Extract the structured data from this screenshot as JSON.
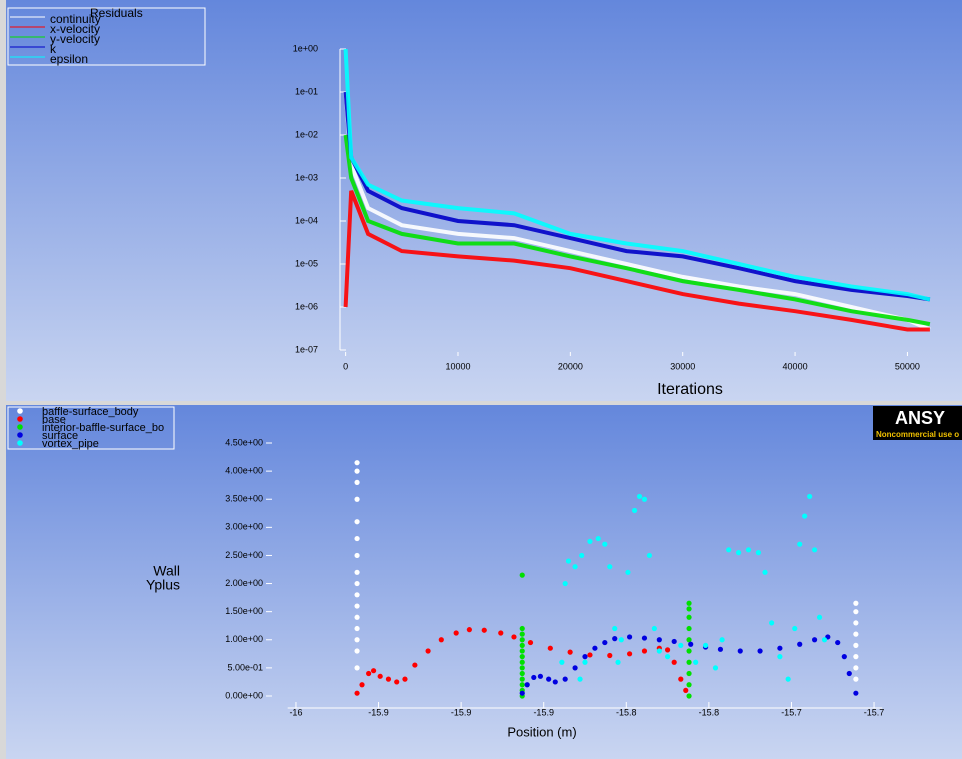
{
  "chart_data": [
    {
      "type": "line",
      "title": "Residuals",
      "xlabel": "Iterations",
      "log_y": true,
      "x": [
        0,
        500,
        2000,
        5000,
        10000,
        15000,
        20000,
        25000,
        30000,
        35000,
        40000,
        45000,
        50000,
        52000
      ],
      "xlim": [
        -500,
        54500
      ],
      "xticks": [
        0,
        10000,
        20000,
        30000,
        40000,
        50000
      ],
      "ylim": [
        1e-07,
        1
      ],
      "yticks": [
        {
          "value": 1,
          "label": "1e+00"
        },
        {
          "value": 0.1,
          "label": "1e-01"
        },
        {
          "value": 0.01,
          "label": "1e-02"
        },
        {
          "value": 0.001,
          "label": "1e-03"
        },
        {
          "value": 0.0001,
          "label": "1e-04"
        },
        {
          "value": 1e-05,
          "label": "1e-05"
        },
        {
          "value": 1e-06,
          "label": "1e-06"
        },
        {
          "value": 1e-07,
          "label": "1e-07"
        }
      ],
      "legend": "top-left",
      "series": [
        {
          "name": "continuity",
          "color": "#ffffff",
          "values": [
            0.1,
            0.002,
            0.0002,
            8e-05,
            5e-05,
            4e-05,
            2e-05,
            1e-05,
            5e-06,
            3e-06,
            2e-06,
            1e-06,
            5e-07,
            3e-07
          ]
        },
        {
          "name": "x-velocity",
          "color": "#ff0000",
          "values": [
            1e-06,
            0.0005,
            5e-05,
            2e-05,
            1.5e-05,
            1.2e-05,
            8e-06,
            4e-06,
            2e-06,
            1.2e-06,
            8e-07,
            5e-07,
            3e-07,
            3e-07
          ]
        },
        {
          "name": "y-velocity",
          "color": "#00e000",
          "values": [
            0.01,
            0.001,
            0.0001,
            5e-05,
            3e-05,
            3e-05,
            1.5e-05,
            8e-06,
            4e-06,
            2.5e-06,
            1.5e-06,
            8e-07,
            5e-07,
            4e-07
          ]
        },
        {
          "name": "k",
          "color": "#0000c8",
          "values": [
            0.1,
            0.003,
            0.0005,
            0.0002,
            0.0001,
            8e-05,
            4e-05,
            2e-05,
            1.5e-05,
            8e-06,
            4e-06,
            2.5e-06,
            1.8e-06,
            1.5e-06
          ]
        },
        {
          "name": "epsilon",
          "color": "#00ffff",
          "values": [
            1,
            0.003,
            0.0007,
            0.0003,
            0.0002,
            0.00015,
            5e-05,
            3e-05,
            2e-05,
            1e-05,
            5e-06,
            3e-06,
            2e-06,
            1.5e-06
          ]
        }
      ]
    },
    {
      "type": "scatter",
      "xlabel": "Position (m)",
      "ylabel": [
        "Wall",
        "Yplus"
      ],
      "xlim": [
        -16.005,
        -15.645
      ],
      "xticks": [
        -16,
        {
          "value": -15.95,
          "label": "-15.9"
        },
        -15.9,
        {
          "value": -15.85,
          "label": "-15.9"
        },
        -15.8,
        {
          "value": -15.75,
          "label": "-15.8"
        },
        -15.7,
        {
          "value": -15.65,
          "label": "-15.7"
        }
      ],
      "ylim": [
        -0.05,
        4.55
      ],
      "yticks": [
        {
          "value": 0,
          "label": "0.00e+00"
        },
        {
          "value": 0.5,
          "label": "5.00e-01"
        },
        {
          "value": 1,
          "label": "1.00e+00"
        },
        {
          "value": 1.5,
          "label": "1.50e+00"
        },
        {
          "value": 2,
          "label": "2.00e+00"
        },
        {
          "value": 2.5,
          "label": "2.50e+00"
        },
        {
          "value": 3,
          "label": "3.00e+00"
        },
        {
          "value": 3.5,
          "label": "3.50e+00"
        },
        {
          "value": 4,
          "label": "4.00e+00"
        },
        {
          "value": 4.5,
          "label": "4.50e+00"
        }
      ],
      "legend": "top-left",
      "logo": "ANSY",
      "logo_note": "Noncommercial use o",
      "series": [
        {
          "name": "baffle-surface_body",
          "color": "#ffffff",
          "x": [
            -15.963,
            -15.963,
            -15.963,
            -15.963,
            -15.963,
            -15.963,
            -15.963,
            -15.963,
            -15.963,
            -15.963,
            -15.963,
            -15.963,
            -15.963,
            -15.963,
            -15.963,
            -15.963,
            -15.661,
            -15.661,
            -15.661,
            -15.661,
            -15.661,
            -15.661,
            -15.661,
            -15.661,
            -15.661
          ],
          "values": [
            0.5,
            0.8,
            1.0,
            1.2,
            1.4,
            1.6,
            1.8,
            2.0,
            2.2,
            2.5,
            2.8,
            3.1,
            3.5,
            3.8,
            4.0,
            4.15,
            0.05,
            0.3,
            0.5,
            0.7,
            0.9,
            1.1,
            1.3,
            1.5,
            1.65
          ]
        },
        {
          "name": "base",
          "color": "#ff0000",
          "x": [
            -15.963,
            -15.96,
            -15.956,
            -15.953,
            -15.949,
            -15.944,
            -15.939,
            -15.934,
            -15.928,
            -15.92,
            -15.912,
            -15.903,
            -15.895,
            -15.886,
            -15.876,
            -15.868,
            -15.858,
            -15.846,
            -15.834,
            -15.822,
            -15.81,
            -15.798,
            -15.789,
            -15.78,
            -15.775,
            -15.771,
            -15.767,
            -15.764
          ],
          "values": [
            0.05,
            0.2,
            0.4,
            0.45,
            0.35,
            0.3,
            0.25,
            0.3,
            0.55,
            0.8,
            1.0,
            1.12,
            1.18,
            1.17,
            1.12,
            1.05,
            0.95,
            0.85,
            0.78,
            0.73,
            0.72,
            0.75,
            0.8,
            0.85,
            0.82,
            0.6,
            0.3,
            0.1
          ]
        },
        {
          "name": "interior-baffle-surface_bo",
          "color": "#00e000",
          "x": [
            -15.863,
            -15.863,
            -15.863,
            -15.863,
            -15.863,
            -15.863,
            -15.863,
            -15.863,
            -15.863,
            -15.863,
            -15.863,
            -15.863,
            -15.863,
            -15.863,
            -15.762,
            -15.762,
            -15.762,
            -15.762,
            -15.762,
            -15.762,
            -15.762,
            -15.762,
            -15.762,
            -15.762
          ],
          "values": [
            0,
            0.1,
            0.2,
            0.3,
            0.4,
            0.5,
            0.6,
            0.7,
            0.8,
            0.9,
            1.0,
            1.1,
            1.2,
            2.15,
            0,
            0.2,
            0.4,
            0.6,
            0.8,
            1.0,
            1.2,
            1.4,
            1.55,
            1.65
          ]
        },
        {
          "name": "surface",
          "color": "#0000e0",
          "x": [
            -15.863,
            -15.86,
            -15.856,
            -15.852,
            -15.847,
            -15.843,
            -15.837,
            -15.831,
            -15.825,
            -15.819,
            -15.813,
            -15.807,
            -15.798,
            -15.789,
            -15.78,
            -15.771,
            -15.761,
            -15.752,
            -15.743,
            -15.731,
            -15.719,
            -15.707,
            -15.695,
            -15.686,
            -15.678,
            -15.672,
            -15.668,
            -15.665,
            -15.661
          ],
          "values": [
            0.05,
            0.2,
            0.33,
            0.35,
            0.3,
            0.25,
            0.3,
            0.5,
            0.7,
            0.85,
            0.95,
            1.02,
            1.05,
            1.03,
            1.0,
            0.97,
            0.92,
            0.87,
            0.83,
            0.8,
            0.8,
            0.85,
            0.92,
            1.0,
            1.05,
            0.95,
            0.7,
            0.4,
            0.05
          ]
        },
        {
          "name": "vortex_pipe",
          "color": "#00ffff",
          "x": [
            -15.839,
            -15.837,
            -15.835,
            -15.831,
            -15.828,
            -15.827,
            -15.825,
            -15.822,
            -15.817,
            -15.813,
            -15.81,
            -15.807,
            -15.805,
            -15.803,
            -15.799,
            -15.795,
            -15.792,
            -15.789,
            -15.786,
            -15.783,
            -15.78,
            -15.775,
            -15.767,
            -15.758,
            -15.752,
            -15.746,
            -15.742,
            -15.738,
            -15.732,
            -15.726,
            -15.72,
            -15.716,
            -15.712,
            -15.707,
            -15.702,
            -15.698,
            -15.695,
            -15.692,
            -15.689,
            -15.686,
            -15.683,
            -15.68
          ],
          "values": [
            0.6,
            2.0,
            2.4,
            2.3,
            0.3,
            2.5,
            0.6,
            2.75,
            2.8,
            2.7,
            2.3,
            1.2,
            0.6,
            1.0,
            2.2,
            3.3,
            3.55,
            3.5,
            2.5,
            1.2,
            0.8,
            0.7,
            0.9,
            0.6,
            0.9,
            0.5,
            1.0,
            2.6,
            2.55,
            2.6,
            2.55,
            2.2,
            1.3,
            0.7,
            0.3,
            1.2,
            2.7,
            3.2,
            3.55,
            2.6,
            1.4,
            1.0
          ]
        }
      ]
    }
  ]
}
